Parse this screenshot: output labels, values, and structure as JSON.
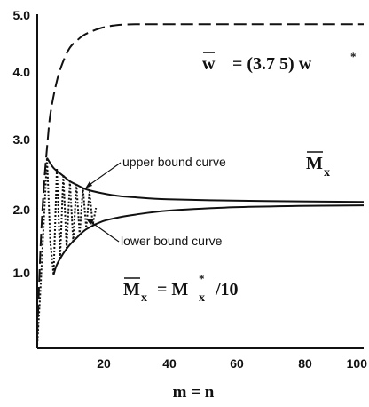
{
  "chart_data": {
    "type": "line",
    "title": "",
    "xlabel": "m = n",
    "ylabel": "",
    "xlim": [
      0,
      100
    ],
    "ylim": [
      0,
      5.0
    ],
    "x_ticks": [
      "20",
      "40",
      "60",
      "80",
      "100"
    ],
    "y_ticks": [
      "1.0",
      "2.0",
      "3.0",
      "4.0",
      "5.0"
    ],
    "series": [
      {
        "style": "dashed",
        "x": [
          0,
          1,
          2,
          3,
          4,
          6,
          8,
          10,
          12,
          14,
          16,
          18,
          20,
          22,
          25,
          30,
          40,
          60,
          80,
          100
        ],
        "y": [
          0.2,
          1.5,
          2.4,
          3.0,
          3.5,
          4.0,
          4.3,
          4.5,
          4.6,
          4.68,
          4.73,
          4.77,
          4.8,
          4.82,
          4.84,
          4.85,
          4.85,
          4.85,
          4.85,
          4.85
        ]
      },
      {
        "name": "upper bound curve",
        "style": "solid",
        "x": [
          3,
          5,
          8,
          10,
          12,
          15,
          20,
          25,
          30,
          40,
          60,
          80,
          100
        ],
        "y": [
          2.85,
          2.7,
          2.58,
          2.5,
          2.45,
          2.38,
          2.32,
          2.28,
          2.26,
          2.23,
          2.21,
          2.2,
          2.19
        ]
      },
      {
        "name": "lower bound curve",
        "style": "solid",
        "x": [
          5,
          6,
          8,
          10,
          12,
          15,
          20,
          25,
          30,
          40,
          60,
          80,
          100
        ],
        "y": [
          1.1,
          1.25,
          1.42,
          1.55,
          1.65,
          1.78,
          1.9,
          1.96,
          2.0,
          2.06,
          2.11,
          2.13,
          2.14
        ]
      },
      {
        "style": "dotted",
        "x": [
          0,
          1,
          2,
          3,
          4,
          5,
          6,
          7,
          8,
          9,
          10,
          11,
          12,
          13,
          14,
          15,
          16,
          17,
          18
        ],
        "y": [
          0.05,
          0.9,
          1.9,
          2.85,
          1.6,
          1.1,
          2.7,
          1.35,
          2.6,
          1.5,
          2.5,
          1.6,
          2.45,
          1.7,
          2.4,
          1.8,
          2.35,
          1.85,
          2.1
        ]
      }
    ],
    "annotations": {
      "w_equation": {
        "lhs": "w",
        "rhs": "= (3.7 5) w",
        "sup": "*"
      },
      "mx_label": {
        "main": "M",
        "sub": "x"
      },
      "mx_equation": {
        "lhs": "M",
        "lhs_sub": "x",
        "rhs": "= M",
        "rhs_sup": "*",
        "rhs_sub": "x",
        "tail": "/10"
      }
    }
  }
}
